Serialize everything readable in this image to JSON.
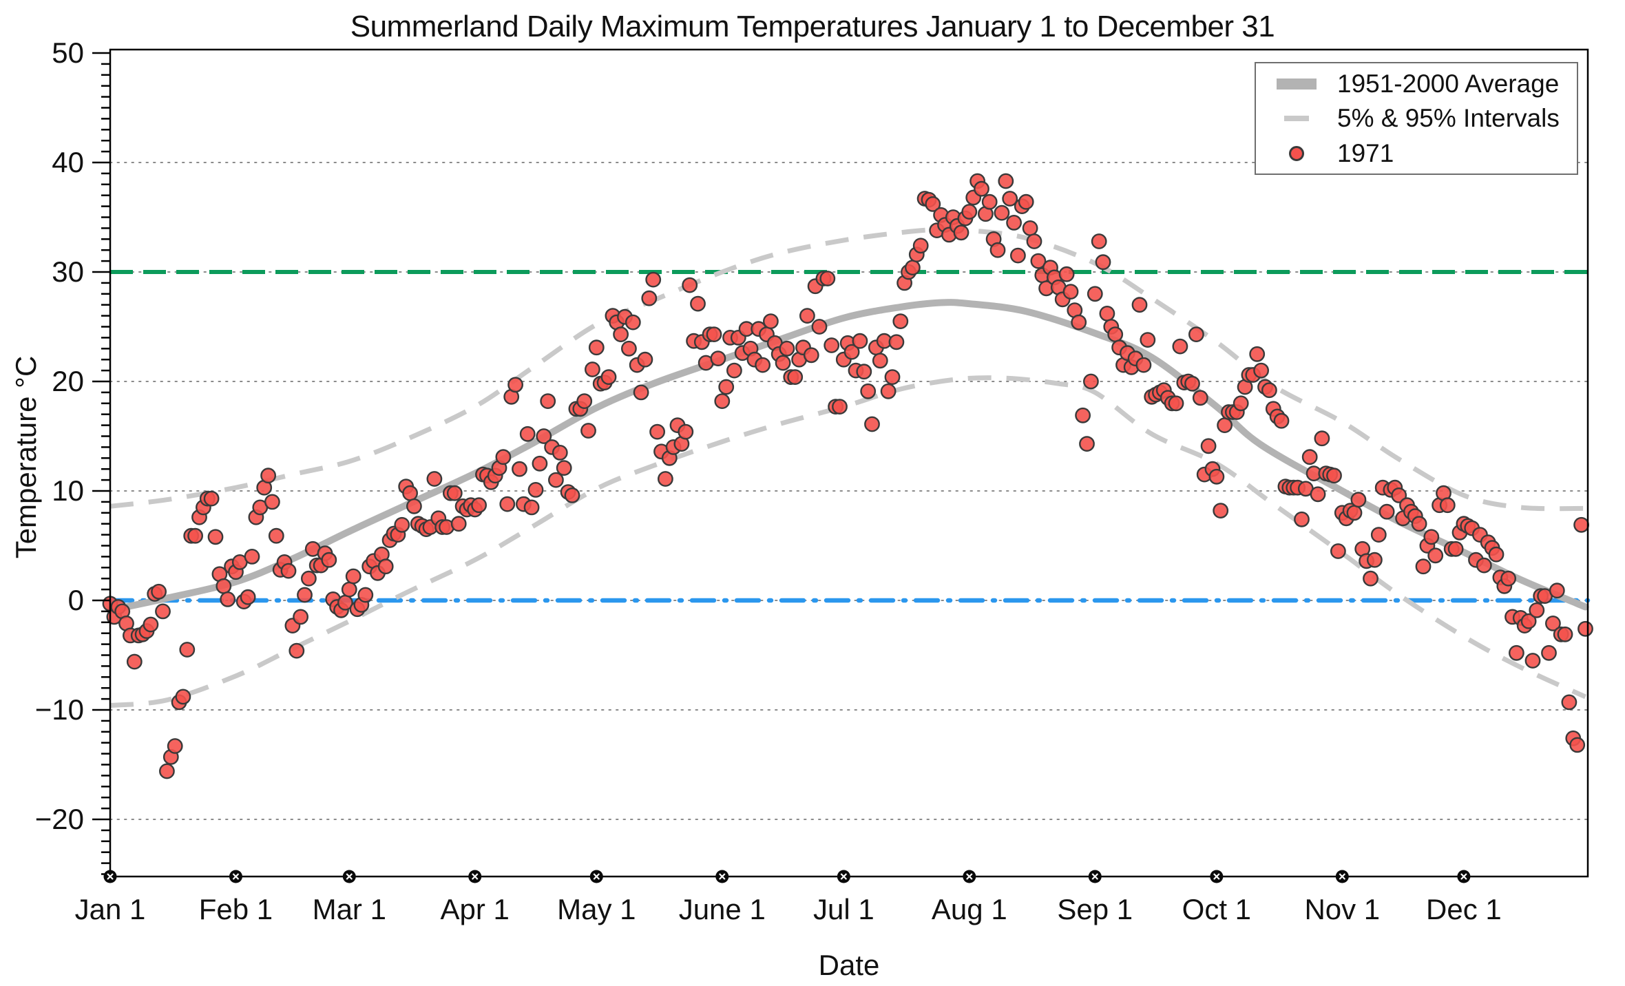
{
  "title": "Summerland Daily Maximum Temperatures January 1 to December 31",
  "axes": {
    "x_label": "Date",
    "y_label": "Temperature °C",
    "y_tick_labels": [
      "50",
      "40",
      "30",
      "20",
      "10",
      "0",
      "−10",
      "−20"
    ],
    "y_tick_values": [
      50,
      40,
      30,
      20,
      10,
      0,
      -10,
      -20
    ],
    "y_minor_step": 1,
    "ylim": [
      -25.2,
      50.3
    ],
    "xlim_days": [
      1,
      365.6
    ],
    "x_month_labels": [
      "Jan 1",
      "Feb 1",
      "Mar 1",
      "Apr 1",
      "May 1",
      "June 1",
      "Jul 1",
      "Aug 1",
      "Sep 1",
      "Oct 1",
      "Nov 1",
      "Dec 1"
    ],
    "month_start_days": [
      1,
      32,
      60,
      91,
      121,
      152,
      182,
      213,
      244,
      274,
      305,
      335
    ],
    "grid_values": [
      40,
      30,
      20,
      10,
      0,
      -10,
      -20
    ]
  },
  "legend": {
    "items": [
      {
        "label": "1951-2000 Average",
        "marker": "thick-line",
        "color": "#b3b3b3"
      },
      {
        "label": "5% & 95% Intervals",
        "marker": "dashed-line",
        "color": "#c9c9c9"
      },
      {
        "label": "1971",
        "marker": "dot",
        "color": "#f4524d"
      }
    ]
  },
  "colors": {
    "scatter_fill": "#f4524d",
    "scatter_edge": "#3a3a3a",
    "average_line": "#b3b3b3",
    "interval_line": "#c9c9c9",
    "ref_30c": "#0c9b5b",
    "ref_0c": "#2b97ee",
    "gridline": "#8a8a8a",
    "axis": "#000000"
  },
  "chart_data": {
    "type": "scatter",
    "title": "Summerland Daily Maximum Temperatures January 1 to December 31",
    "xlabel": "Date",
    "ylabel": "Temperature °C",
    "x_unit": "day_of_year_1971",
    "reference_lines_c": [
      30,
      0
    ],
    "series": [
      {
        "name": "1971",
        "type": "scatter",
        "note": "daily maximum temperature per day of year, deg C, estimated from pixels",
        "daily_max_c": [
          -0.3,
          -1.5,
          -0.6,
          -1.0,
          -2.1,
          -3.2,
          -5.6,
          -3.2,
          -3.1,
          -2.8,
          -2.2,
          0.6,
          0.8,
          -1.0,
          -15.6,
          -14.3,
          -13.3,
          -9.3,
          -8.8,
          -4.5,
          5.9,
          5.9,
          7.6,
          8.5,
          9.3,
          9.3,
          5.8,
          2.4,
          1.3,
          0.1,
          3.1,
          2.6,
          3.5,
          -0.1,
          0.3,
          4.0,
          7.6,
          8.5,
          10.3,
          11.4,
          9.0,
          5.9,
          2.8,
          3.5,
          2.7,
          -2.3,
          -4.6,
          -1.5,
          0.5,
          2.0,
          4.7,
          3.2,
          3.2,
          4.3,
          3.7,
          0.1,
          -0.6,
          -0.9,
          -0.2,
          1.0,
          2.2,
          -0.8,
          -0.4,
          0.5,
          3.1,
          3.6,
          2.5,
          4.2,
          3.1,
          5.5,
          6.1,
          6.0,
          6.9,
          10.4,
          9.8,
          8.6,
          7.0,
          6.8,
          6.5,
          6.7,
          11.1,
          7.5,
          6.7,
          6.7,
          9.8,
          9.8,
          7.0,
          8.6,
          8.3,
          8.7,
          8.3,
          8.7,
          11.5,
          11.4,
          10.8,
          11.4,
          12.1,
          13.1,
          8.8,
          18.6,
          19.7,
          12.0,
          8.8,
          15.2,
          8.5,
          10.1,
          12.5,
          15.0,
          18.2,
          14.0,
          11.0,
          13.5,
          12.1,
          9.9,
          9.6,
          17.5,
          17.5,
          18.2,
          15.5,
          21.1,
          23.1,
          19.8,
          19.9,
          20.4,
          26.0,
          25.4,
          24.3,
          25.9,
          23.0,
          25.4,
          21.5,
          19.0,
          22.0,
          27.6,
          29.3,
          15.4,
          13.6,
          11.1,
          13.0,
          14.0,
          16.0,
          14.3,
          15.4,
          28.8,
          23.7,
          27.1,
          23.6,
          21.7,
          24.3,
          24.3,
          22.1,
          18.2,
          19.5,
          24.0,
          21.0,
          24.0,
          22.6,
          24.8,
          23.0,
          22.0,
          24.8,
          21.5,
          24.3,
          25.5,
          23.5,
          22.5,
          21.7,
          23.0,
          20.4,
          20.4,
          22.0,
          23.1,
          26.0,
          22.4,
          28.7,
          25.0,
          29.4,
          29.4,
          23.3,
          17.7,
          17.7,
          22.0,
          23.5,
          22.7,
          21.0,
          23.7,
          20.9,
          19.1,
          16.1,
          23.1,
          21.9,
          23.7,
          19.1,
          20.4,
          23.6,
          25.5,
          29.0,
          30.0,
          30.4,
          31.6,
          32.4,
          36.7,
          36.6,
          36.2,
          33.8,
          35.2,
          34.3,
          33.4,
          35.0,
          34.2,
          33.6,
          34.9,
          35.5,
          36.8,
          38.3,
          37.6,
          35.3,
          36.4,
          33.0,
          32.0,
          35.4,
          38.3,
          36.7,
          34.5,
          31.5,
          36.0,
          36.4,
          34.0,
          32.8,
          31.0,
          29.7,
          28.5,
          30.4,
          29.5,
          28.6,
          27.5,
          29.8,
          28.2,
          26.5,
          25.4,
          16.9,
          14.3,
          20.0,
          28.0,
          32.8,
          30.9,
          26.2,
          25.0,
          24.3,
          23.1,
          21.5,
          22.6,
          21.3,
          22.1,
          27.0,
          21.5,
          23.8,
          18.6,
          18.8,
          19.0,
          19.2,
          18.5,
          18.0,
          18.0,
          23.2,
          19.9,
          20.0,
          19.8,
          24.3,
          18.5,
          11.5,
          14.1,
          12.0,
          11.3,
          8.2,
          16.0,
          17.2,
          17.2,
          17.2,
          18.0,
          19.5,
          20.6,
          20.6,
          22.5,
          21.0,
          19.5,
          19.2,
          17.5,
          16.8,
          16.4,
          10.4,
          10.3,
          10.3,
          10.3,
          7.4,
          10.2,
          13.1,
          11.6,
          9.7,
          14.8,
          11.6,
          11.5,
          11.4,
          4.5,
          8.0,
          7.5,
          8.2,
          8.0,
          9.2,
          4.7,
          3.6,
          2.0,
          3.7,
          6.0,
          10.3,
          8.1,
          10.1,
          10.3,
          9.6,
          7.5,
          8.7,
          8.1,
          7.7,
          7.0,
          3.1,
          5.0,
          5.8,
          4.1,
          8.7,
          9.8,
          8.7,
          4.7,
          4.7,
          6.2,
          7.0,
          6.8,
          6.6,
          3.7,
          6.0,
          3.2,
          5.3,
          4.8,
          4.2,
          2.1,
          1.3,
          2.0,
          -1.5,
          -4.8,
          -1.6,
          -2.3,
          -1.9,
          -5.5,
          -0.9,
          0.4,
          0.4,
          -4.8,
          -2.1,
          0.9,
          -3.1,
          -3.1,
          -9.3,
          -12.6,
          -13.2,
          6.9,
          -2.6
        ]
      },
      {
        "name": "1951-2000 Average",
        "type": "line",
        "points": [
          [
            1,
            -0.9
          ],
          [
            15,
            0.2
          ],
          [
            32,
            1.7
          ],
          [
            46,
            3.8
          ],
          [
            60,
            6.3
          ],
          [
            74,
            8.7
          ],
          [
            91,
            11.6
          ],
          [
            105,
            14.3
          ],
          [
            121,
            17.6
          ],
          [
            135,
            19.8
          ],
          [
            152,
            22.0
          ],
          [
            166,
            23.8
          ],
          [
            182,
            25.8
          ],
          [
            196,
            26.8
          ],
          [
            206,
            27.2
          ],
          [
            213,
            27.1
          ],
          [
            227,
            26.4
          ],
          [
            244,
            24.4
          ],
          [
            258,
            22.2
          ],
          [
            274,
            17.7
          ],
          [
            285,
            14.2
          ],
          [
            305,
            10.0
          ],
          [
            319,
            7.2
          ],
          [
            335,
            4.4
          ],
          [
            349,
            1.9
          ],
          [
            365,
            -0.6
          ]
        ]
      },
      {
        "name": "95% Interval",
        "type": "line",
        "points": [
          [
            1,
            8.6
          ],
          [
            15,
            9.2
          ],
          [
            32,
            10.3
          ],
          [
            46,
            11.5
          ],
          [
            60,
            12.7
          ],
          [
            74,
            14.7
          ],
          [
            91,
            17.7
          ],
          [
            105,
            21.2
          ],
          [
            121,
            25.2
          ],
          [
            135,
            27.4
          ],
          [
            152,
            30.0
          ],
          [
            166,
            31.7
          ],
          [
            182,
            32.9
          ],
          [
            196,
            33.6
          ],
          [
            206,
            33.9
          ],
          [
            213,
            33.8
          ],
          [
            227,
            33.1
          ],
          [
            244,
            30.8
          ],
          [
            258,
            27.6
          ],
          [
            274,
            23.6
          ],
          [
            288,
            19.6
          ],
          [
            305,
            16.3
          ],
          [
            319,
            12.9
          ],
          [
            335,
            9.6
          ],
          [
            349,
            8.5
          ],
          [
            365,
            8.4
          ]
        ]
      },
      {
        "name": "5% Interval",
        "type": "line",
        "points": [
          [
            1,
            -9.6
          ],
          [
            15,
            -9.1
          ],
          [
            32,
            -6.9
          ],
          [
            46,
            -4.4
          ],
          [
            60,
            -1.9
          ],
          [
            74,
            0.7
          ],
          [
            91,
            3.7
          ],
          [
            105,
            6.7
          ],
          [
            121,
            10.2
          ],
          [
            135,
            12.3
          ],
          [
            152,
            14.5
          ],
          [
            166,
            16.1
          ],
          [
            182,
            17.7
          ],
          [
            196,
            19.3
          ],
          [
            210,
            20.2
          ],
          [
            222,
            20.3
          ],
          [
            235,
            19.8
          ],
          [
            244,
            19.0
          ],
          [
            258,
            15.2
          ],
          [
            274,
            12.5
          ],
          [
            288,
            8.8
          ],
          [
            305,
            4.3
          ],
          [
            319,
            0.5
          ],
          [
            335,
            -3.3
          ],
          [
            349,
            -6.1
          ],
          [
            365,
            -8.8
          ]
        ]
      }
    ]
  }
}
